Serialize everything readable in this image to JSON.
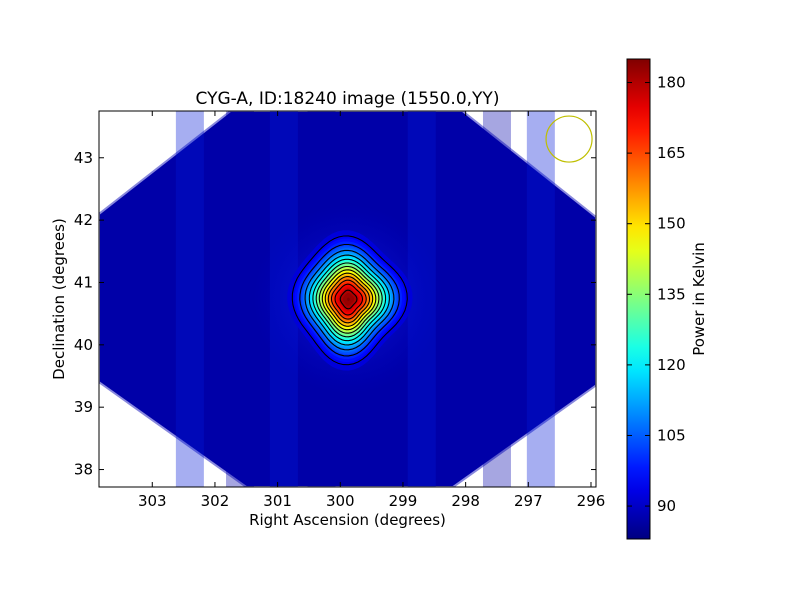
{
  "chart_data": {
    "type": "heatmap",
    "title": "CYG-A, ID:18240 image (1550.0,YY)",
    "xlabel": "Right Ascension (degrees)",
    "ylabel": "Declination (degrees)",
    "xlim": [
      303.85,
      295.92
    ],
    "ylim": [
      37.72,
      43.75
    ],
    "x_ticks": [
      303,
      302,
      301,
      300,
      299,
      298,
      297,
      296
    ],
    "y_ticks": [
      38,
      39,
      40,
      41,
      42,
      43
    ],
    "colorbar": {
      "label": "Power in Kelvin",
      "range": [
        83,
        185
      ],
      "ticks": [
        90,
        105,
        120,
        135,
        150,
        165,
        180
      ],
      "colormap": "jet"
    },
    "map": {
      "background_level": 87,
      "source": {
        "ra": 299.87,
        "dec": 40.73,
        "peak": 185
      },
      "diamond_vertices": [
        [
          301.75,
          43.75
        ],
        [
          298.05,
          43.75
        ],
        [
          295.92,
          42.05
        ],
        [
          295.92,
          39.35
        ],
        [
          298.2,
          37.72
        ],
        [
          301.5,
          37.72
        ],
        [
          303.85,
          39.4
        ],
        [
          303.85,
          42.1
        ]
      ],
      "contour_levels": [
        95,
        102,
        109,
        116,
        123,
        130,
        137,
        144,
        151,
        158,
        165,
        172,
        180
      ],
      "beam_marker": {
        "ra": 296.35,
        "dec": 43.3,
        "color": "#bfbf00"
      }
    }
  }
}
